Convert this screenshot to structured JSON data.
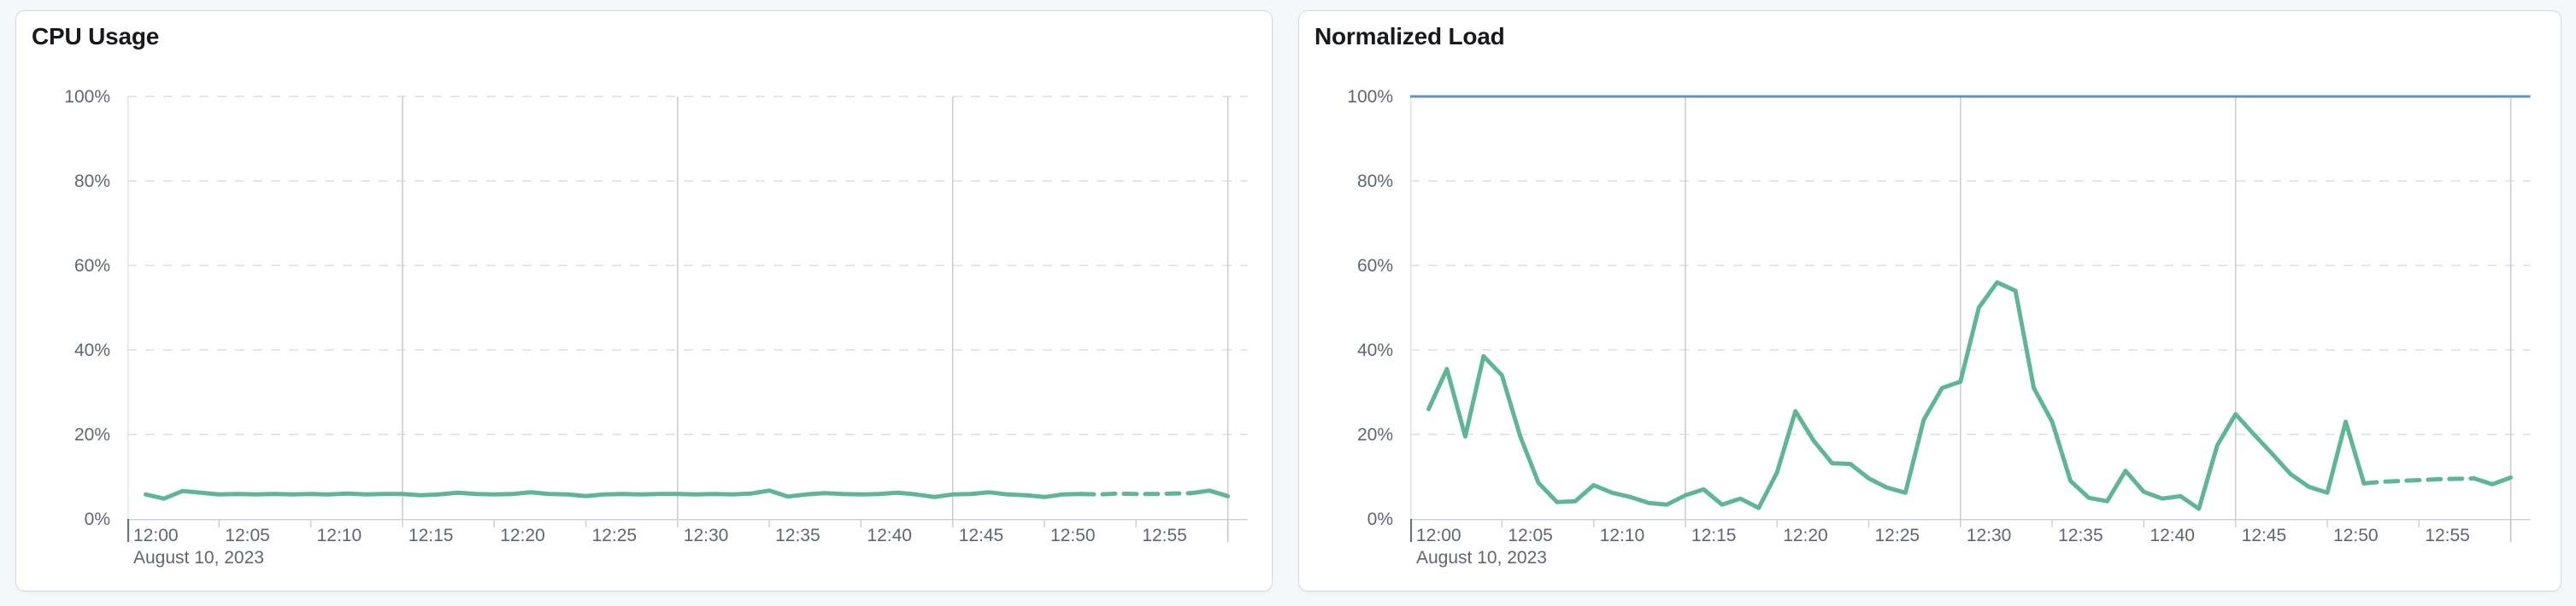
{
  "chart_data": [
    {
      "type": "line",
      "title": "CPU Usage",
      "x_axis": {
        "tick_labels": [
          "12:00",
          "12:05",
          "12:10",
          "12:15",
          "12:20",
          "12:25",
          "12:30",
          "12:35",
          "12:40",
          "12:45",
          "12:50",
          "12:55"
        ],
        "date_label": "August 10, 2023",
        "range": [
          "12:00",
          "13:00"
        ],
        "interval_minutes": 1
      },
      "y_axis": {
        "tick_labels": [
          "0%",
          "20%",
          "40%",
          "60%",
          "80%",
          "100%"
        ],
        "ylim": [
          0,
          100
        ],
        "unit": "percent"
      },
      "grid": {
        "horizontal_dashed": true,
        "vertical_lines_at": [
          "12:15",
          "12:30",
          "12:45",
          "13:00"
        ]
      },
      "legend": "none",
      "limit_line": null,
      "series": [
        {
          "name": "CPU Usage",
          "color": "#5fb694",
          "start_time": "12:01",
          "values": [
            5.8,
            4.8,
            6.6,
            6.2,
            5.8,
            5.9,
            5.8,
            5.9,
            5.8,
            5.9,
            5.8,
            6.0,
            5.8,
            5.9,
            5.9,
            5.6,
            5.8,
            6.2,
            5.9,
            5.8,
            5.9,
            6.3,
            5.9,
            5.8,
            5.4,
            5.8,
            5.9,
            5.8,
            5.9,
            5.9,
            5.8,
            5.9,
            5.8,
            6.0,
            6.7,
            5.3,
            5.8,
            6.1,
            5.9,
            5.8,
            5.9,
            6.2,
            5.8,
            5.2,
            5.8,
            5.9,
            6.3,
            5.8,
            5.6,
            5.2,
            5.8,
            5.9,
            5.8,
            6.0,
            5.9,
            5.9,
            6.0,
            6.1,
            6.7,
            5.4
          ],
          "dashed_segment": {
            "from_index": 51,
            "to_index": 57
          }
        }
      ]
    },
    {
      "type": "line",
      "title": "Normalized Load",
      "x_axis": {
        "tick_labels": [
          "12:00",
          "12:05",
          "12:10",
          "12:15",
          "12:20",
          "12:25",
          "12:30",
          "12:35",
          "12:40",
          "12:45",
          "12:50",
          "12:55"
        ],
        "date_label": "August 10, 2023",
        "range": [
          "12:00",
          "13:00"
        ],
        "interval_minutes": 1
      },
      "y_axis": {
        "tick_labels": [
          "0%",
          "20%",
          "40%",
          "60%",
          "80%",
          "100%"
        ],
        "ylim": [
          0,
          100
        ],
        "unit": "percent"
      },
      "grid": {
        "horizontal_dashed": true,
        "vertical_lines_at": [
          "12:15",
          "12:30",
          "12:45",
          "13:00"
        ]
      },
      "legend": "none",
      "limit_line": {
        "value": 100,
        "color": "#6690bf"
      },
      "series": [
        {
          "name": "Normalized Load",
          "color": "#5fb694",
          "start_time": "12:01",
          "values": [
            26,
            35.5,
            19.5,
            38.5,
            34,
            19.5,
            8.5,
            4,
            4.2,
            8,
            6.2,
            5.2,
            3.8,
            3.4,
            5.6,
            7,
            3.4,
            4.8,
            2.6,
            11,
            25.5,
            18.5,
            13.2,
            13,
            9.6,
            7.4,
            6.2,
            23.5,
            31,
            32.5,
            50,
            56,
            54,
            31,
            23,
            9,
            5,
            4.2,
            11.4,
            6.4,
            4.8,
            5.4,
            2.4,
            17.4,
            24.8,
            20,
            15.4,
            10.6,
            7.6,
            6.2,
            23,
            8.4,
            8.8,
            9,
            9.2,
            9.4,
            9.5,
            9.6,
            8.2,
            9.8
          ],
          "dashed_segment": {
            "from_index": 51,
            "to_index": 57
          }
        }
      ]
    }
  ]
}
